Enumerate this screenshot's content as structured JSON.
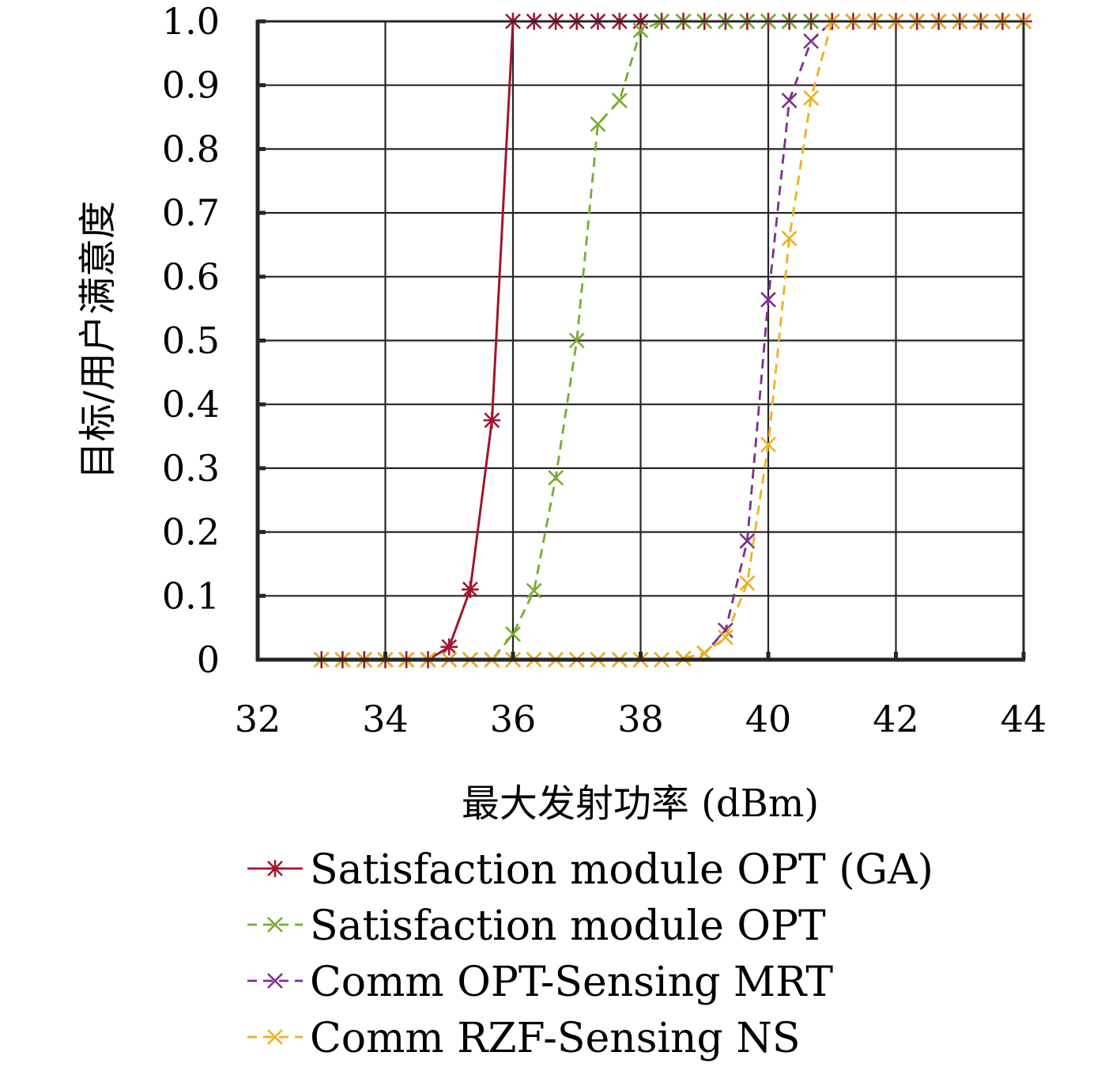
{
  "chart_data": {
    "type": "line",
    "title": "",
    "xlabel": "最大发射功率 (dBm)",
    "ylabel": "目标/用户满意度",
    "xlim": [
      32,
      44
    ],
    "ylim": [
      0,
      1
    ],
    "xticks": [
      32,
      34,
      36,
      38,
      40,
      42,
      44
    ],
    "xtick_labels": [
      "32",
      "34",
      "36",
      "38",
      "40",
      "42",
      "44"
    ],
    "yticks": [
      0,
      0.1,
      0.2,
      0.3,
      0.4,
      0.5,
      0.6,
      0.7,
      0.8,
      0.9,
      1.0
    ],
    "ytick_labels": [
      "0",
      "0.1",
      "0.2",
      "0.3",
      "0.4",
      "0.5",
      "0.6",
      "0.7",
      "0.8",
      "0.9",
      "1.0"
    ],
    "grid": true,
    "legend_position": "bottom",
    "x": [
      33,
      33.33,
      33.67,
      34,
      34.33,
      34.67,
      35,
      35.33,
      35.67,
      36,
      36.33,
      36.67,
      37,
      37.33,
      37.67,
      38,
      38.33,
      38.67,
      39,
      39.33,
      39.67,
      40,
      40.33,
      40.67,
      41,
      41.33,
      41.67,
      42,
      42.33,
      42.67,
      43,
      43.33,
      43.67,
      44
    ],
    "series": [
      {
        "name": "Satisfaction module OPT (GA)",
        "color": "#a2142f",
        "line_style": "solid",
        "marker": "asterisk",
        "values": [
          0,
          0,
          0,
          0,
          0,
          0,
          0.02,
          0.11,
          0.375,
          1,
          1,
          1,
          1,
          1,
          1,
          1,
          1,
          1,
          1,
          1,
          1,
          1,
          1,
          1,
          1,
          1,
          1,
          1,
          1,
          1,
          1,
          1,
          1,
          1
        ]
      },
      {
        "name": "Satisfaction module OPT",
        "color": "#77ac30",
        "line_style": "dashed",
        "marker": "x",
        "values": [
          0,
          0,
          0,
          0,
          0,
          0,
          0,
          0,
          0,
          0.04,
          0.108,
          0.285,
          0.5,
          0.839,
          0.876,
          0.986,
          1,
          1,
          1,
          1,
          1,
          1,
          1,
          1,
          1,
          1,
          1,
          1,
          1,
          1,
          1,
          1,
          1,
          1
        ]
      },
      {
        "name": "Comm OPT-Sensing MRT",
        "color": "#7e2f8e",
        "line_style": "dashed",
        "marker": "x",
        "values": [
          0,
          0,
          0,
          0,
          0,
          0,
          0,
          0,
          0,
          0,
          0,
          0,
          0,
          0,
          0,
          0,
          0,
          0.002,
          0.01,
          0.046,
          0.186,
          0.564,
          0.876,
          0.969,
          1,
          1,
          1,
          1,
          1,
          1,
          1,
          1,
          1,
          1
        ]
      },
      {
        "name": "Comm RZF-Sensing NS",
        "color": "#edb120",
        "line_style": "dashed",
        "marker": "x",
        "values": [
          0,
          0,
          0,
          0,
          0,
          0,
          0,
          0,
          0,
          0,
          0,
          0,
          0,
          0,
          0,
          0,
          0,
          0.002,
          0.01,
          0.035,
          0.12,
          0.337,
          0.66,
          0.88,
          1,
          1,
          1,
          1,
          1,
          1,
          1,
          1,
          1,
          1
        ]
      }
    ]
  }
}
